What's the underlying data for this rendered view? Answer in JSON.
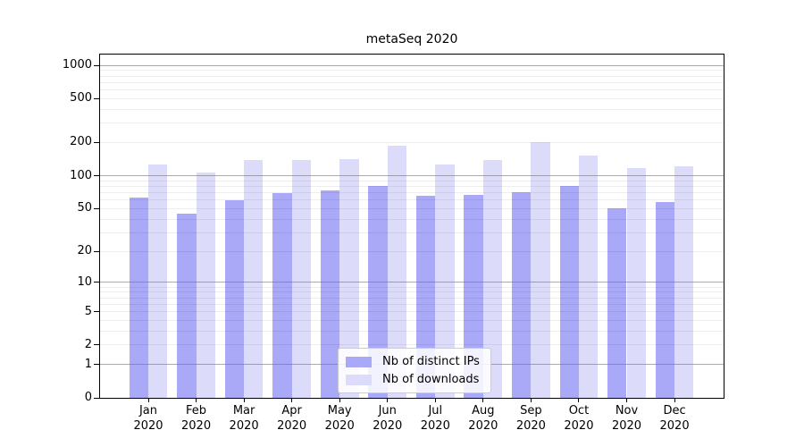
{
  "title": "metaSeq 2020",
  "chart_data": {
    "type": "bar",
    "title": "metaSeq 2020",
    "categories": [
      "Jan 2020",
      "Feb 2020",
      "Mar 2020",
      "Apr 2020",
      "May 2020",
      "Jun 2020",
      "Jul 2020",
      "Aug 2020",
      "Sep 2020",
      "Oct 2020",
      "Nov 2020",
      "Dec 2020"
    ],
    "series": [
      {
        "name": "Nb of distinct IPs",
        "color": "#a9a9f7",
        "values": [
          63,
          45,
          60,
          69,
          74,
          81,
          66,
          67,
          70,
          81,
          50,
          57
        ]
      },
      {
        "name": "Nb of downloads",
        "color": "#dcdcfa",
        "values": [
          126,
          107,
          139,
          140,
          141,
          187,
          127,
          140,
          200,
          152,
          117,
          122
        ]
      }
    ],
    "yscale": "log1p",
    "ylim": [
      0,
      1250
    ],
    "y_ticks": [
      0,
      1,
      2,
      5,
      10,
      20,
      50,
      100,
      200,
      500,
      1000
    ],
    "grid": "on",
    "grid_major": [
      1,
      10,
      100,
      1000
    ],
    "grid_minor": [
      2,
      3,
      4,
      5,
      6,
      7,
      8,
      9,
      20,
      30,
      40,
      50,
      60,
      70,
      80,
      90,
      200,
      300,
      400,
      500,
      600,
      700,
      800,
      900
    ],
    "legend_position": "lower center",
    "xlabel": "",
    "ylabel": ""
  }
}
